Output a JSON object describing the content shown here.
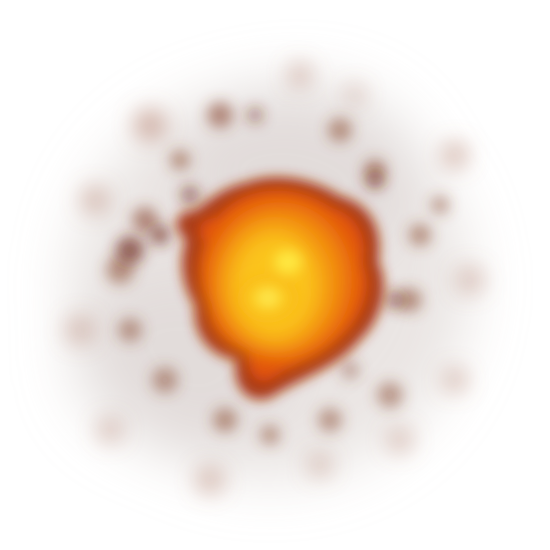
{
  "sprite": {
    "colors": {
      "background": "#ffffff",
      "haze": "#d8d0cc",
      "debris_dark": "#6e2a18",
      "debris_brown": "#8a4a32",
      "debris_light": "#b07a66",
      "rim": "#a8320a",
      "fire_outer": "#e0500a",
      "fire_mid": "#f28a0c",
      "fire_inner": "#fbc41a",
      "core": "#fff04a"
    }
  }
}
